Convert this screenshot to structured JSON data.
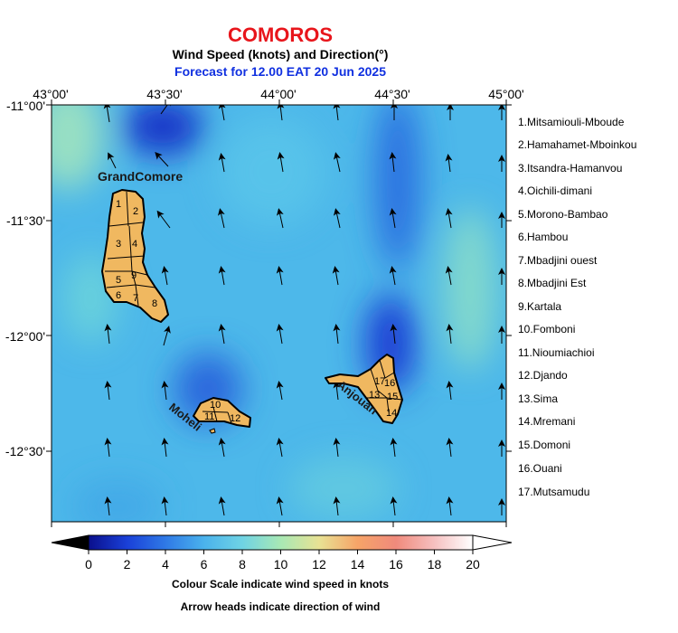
{
  "header": {
    "title": "COMOROS",
    "subtitle": "Wind Speed (knots) and Direction(°)",
    "forecast": "Forecast for  12.00 EAT 20 Jun 2025"
  },
  "axes": {
    "lon_labels": [
      "43°00'",
      "43°30'",
      "44°00'",
      "44°30'",
      "45°00'"
    ],
    "lat_labels": [
      "-11°00'",
      "-11°30'",
      "-12°00'",
      "-12°30'"
    ],
    "lon_range": [
      43.0,
      45.0
    ],
    "lat_range": [
      -12.8,
      -11.0
    ]
  },
  "islands": {
    "grand_comore": "GrandComore",
    "moheli": "Moheli",
    "anjouan": "Anjouan",
    "region_numbers": [
      "1",
      "2",
      "3",
      "4",
      "5",
      "6",
      "7",
      "8",
      "9",
      "10",
      "11",
      "12",
      "13",
      "14",
      "15",
      "16",
      "17"
    ]
  },
  "legend": [
    "1.Mitsamiouli-Mboude",
    "2.Hamahamet-Mboinkou",
    "3.Itsandra-Hamanvou",
    "4.Oichili-dimani",
    "5.Morono-Bambao",
    "6.Hambou",
    "7.Mbadjini ouest",
    "8.Mbadjini Est",
    "9.Kartala",
    "10.Fomboni",
    "11.Nioumiachioi",
    "12.Djando",
    "13.Sima",
    "14.Mremani",
    "15.Domoni",
    "16.Ouani",
    "17.Mutsamudu"
  ],
  "colorbar": {
    "ticks": [
      "0",
      "2",
      "4",
      "6",
      "8",
      "10",
      "12",
      "14",
      "16",
      "18",
      "20"
    ],
    "range": [
      0,
      20
    ],
    "colors": [
      "#0a0f8c",
      "#1a40d8",
      "#3a8ee8",
      "#5cc4ec",
      "#8ee0d0",
      "#d2ec9c",
      "#f6c27a",
      "#f49058",
      "#f08a7c",
      "#f6c0c0",
      "#ffffff"
    ]
  },
  "footer": {
    "line1": "Colour Scale indicate wind speed in knots",
    "line2": "Arrow heads indicate direction of wind"
  },
  "colors": {
    "title": "#e8151b",
    "forecast": "#1030e0",
    "land": "#f0b860",
    "field_base": "#4db8ea"
  }
}
